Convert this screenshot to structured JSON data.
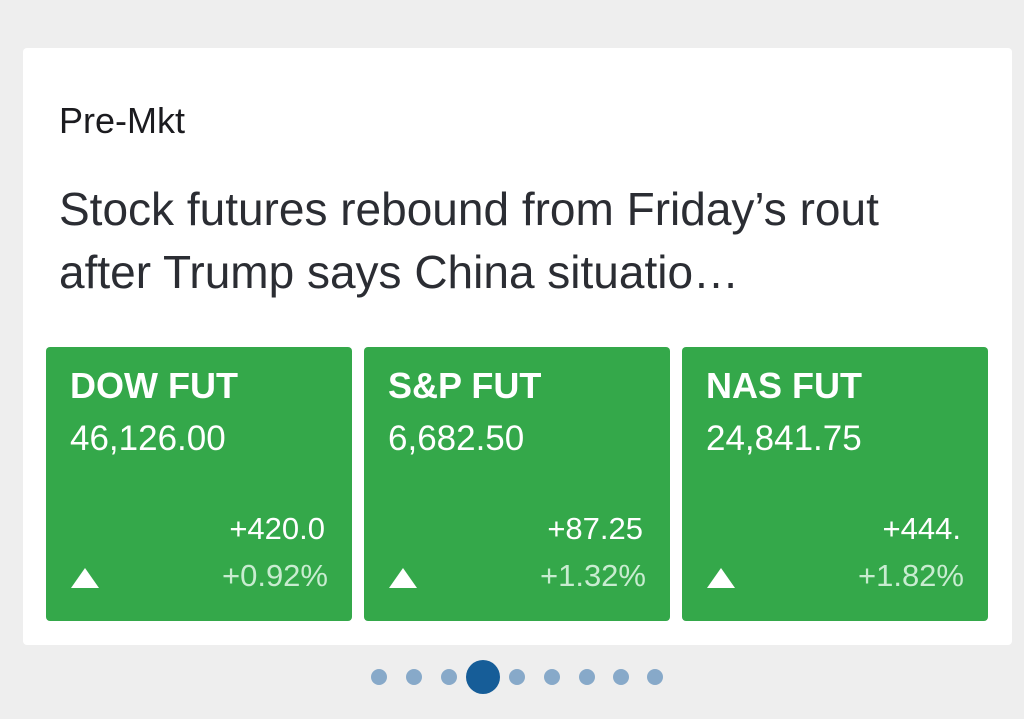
{
  "section": "Pre-Mkt",
  "headline": "Stock futures rebound from Friday’s rout after Trump says China situatio…",
  "tiles": [
    {
      "name": "DOW FUT",
      "price": "46,126.00",
      "change": "+420.0",
      "percent": "+0.92%"
    },
    {
      "name": "S&P FUT",
      "price": "6,682.50",
      "change": "+87.25",
      "percent": "+1.32%"
    },
    {
      "name": "NAS FUT",
      "price": "24,841.75",
      "change": "+444.",
      "percent": "+1.82%"
    }
  ]
}
